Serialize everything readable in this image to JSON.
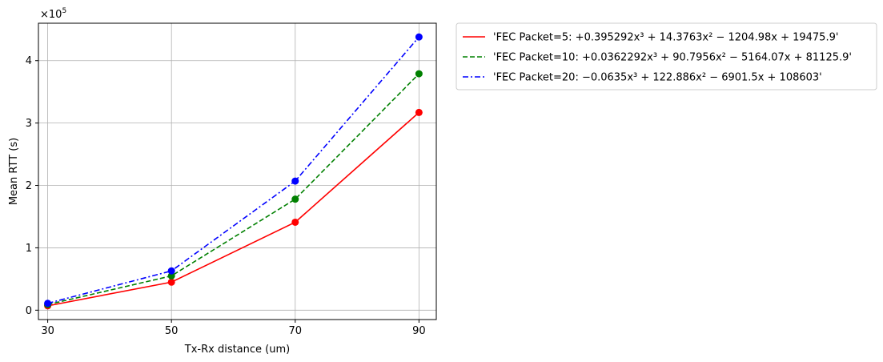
{
  "chart_data": {
    "type": "line",
    "title": "",
    "xlabel": "Tx-Rx distance (um)",
    "ylabel": "Mean RTT (s)",
    "y_scale_label": "×10",
    "y_scale_exponent": "5",
    "x": [
      30,
      50,
      70,
      90
    ],
    "xticks": [
      "30",
      "50",
      "70",
      "90"
    ],
    "yticks": [
      "0",
      "1",
      "2",
      "3",
      "4"
    ],
    "xlim": [
      28.5,
      92.8
    ],
    "ylim": [
      -0.15,
      4.6
    ],
    "grid": true,
    "legend_position": "outside-top-right",
    "series": [
      {
        "name": "'FEC Packet=5: +0.395292x³ + 14.3763x² − 1204.98x + 19475.9'",
        "color": "#ff0000",
        "dash": "solid",
        "values": [
          0.07,
          0.45,
          1.41,
          3.17
        ]
      },
      {
        "name": "'FEC Packet=10: +0.0362292x³ + 90.7956x² − 5164.07x + 81125.9'",
        "color": "#008000",
        "dash": "dashed",
        "values": [
          0.09,
          0.55,
          1.78,
          3.79
        ]
      },
      {
        "name": "'FEC Packet=20: −0.0635x³ + 122.886x² − 6901.5x + 108603'",
        "color": "#0000ff",
        "dash": "dashdot",
        "values": [
          0.11,
          0.63,
          2.07,
          4.38
        ]
      }
    ]
  }
}
